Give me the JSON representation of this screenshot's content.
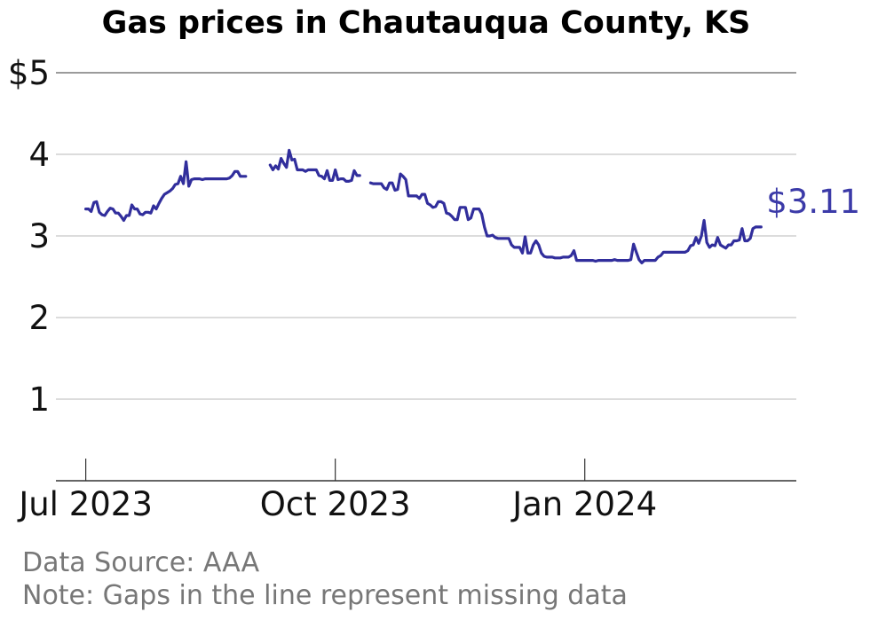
{
  "chart_data": {
    "type": "line",
    "title": "Gas prices in Chautauqua County, KS",
    "ylim": [
      0,
      5
    ],
    "yticks": [
      {
        "value": 1,
        "label": "1"
      },
      {
        "value": 2,
        "label": "2"
      },
      {
        "value": 3,
        "label": "3"
      },
      {
        "value": 4,
        "label": "4"
      },
      {
        "value": 5,
        "label": "$5"
      }
    ],
    "xlim": [
      "2023-06-20",
      "2024-03-19"
    ],
    "xticks": [
      {
        "date": "2023-07-01",
        "label": "Jul 2023"
      },
      {
        "date": "2023-10-01",
        "label": "Oct 2023"
      },
      {
        "date": "2024-01-01",
        "label": "Jan 2024"
      }
    ],
    "grid": true,
    "color": "#312e9c",
    "end_label": "$3.11",
    "segments": [
      [
        [
          "2023-07-01",
          3.33
        ],
        [
          "2023-07-02",
          3.33
        ],
        [
          "2023-07-03",
          3.3
        ],
        [
          "2023-07-04",
          3.41
        ],
        [
          "2023-07-05",
          3.42
        ],
        [
          "2023-07-06",
          3.29
        ],
        [
          "2023-07-07",
          3.26
        ],
        [
          "2023-07-08",
          3.25
        ],
        [
          "2023-07-09",
          3.3
        ],
        [
          "2023-07-10",
          3.34
        ],
        [
          "2023-07-11",
          3.33
        ],
        [
          "2023-07-12",
          3.28
        ],
        [
          "2023-07-13",
          3.28
        ],
        [
          "2023-07-14",
          3.24
        ],
        [
          "2023-07-15",
          3.19
        ],
        [
          "2023-07-16",
          3.25
        ],
        [
          "2023-07-17",
          3.25
        ],
        [
          "2023-07-18",
          3.38
        ],
        [
          "2023-07-19",
          3.33
        ],
        [
          "2023-07-20",
          3.33
        ],
        [
          "2023-07-21",
          3.27
        ],
        [
          "2023-07-22",
          3.26
        ],
        [
          "2023-07-23",
          3.29
        ],
        [
          "2023-07-24",
          3.29
        ],
        [
          "2023-07-25",
          3.28
        ],
        [
          "2023-07-26",
          3.37
        ],
        [
          "2023-07-27",
          3.33
        ],
        [
          "2023-07-28",
          3.4
        ],
        [
          "2023-07-29",
          3.46
        ],
        [
          "2023-07-30",
          3.51
        ],
        [
          "2023-07-31",
          3.53
        ],
        [
          "2023-08-01",
          3.55
        ],
        [
          "2023-08-02",
          3.58
        ],
        [
          "2023-08-03",
          3.63
        ],
        [
          "2023-08-04",
          3.64
        ],
        [
          "2023-08-05",
          3.73
        ],
        [
          "2023-08-06",
          3.64
        ],
        [
          "2023-08-07",
          3.91
        ],
        [
          "2023-08-08",
          3.61
        ],
        [
          "2023-08-09",
          3.69
        ],
        [
          "2023-08-10",
          3.7
        ],
        [
          "2023-08-11",
          3.7
        ],
        [
          "2023-08-12",
          3.7
        ],
        [
          "2023-08-13",
          3.69
        ],
        [
          "2023-08-14",
          3.7
        ],
        [
          "2023-08-15",
          3.7
        ],
        [
          "2023-08-16",
          3.7
        ],
        [
          "2023-08-17",
          3.7
        ],
        [
          "2023-08-18",
          3.7
        ],
        [
          "2023-08-19",
          3.7
        ],
        [
          "2023-08-20",
          3.7
        ],
        [
          "2023-08-21",
          3.7
        ],
        [
          "2023-08-22",
          3.7
        ],
        [
          "2023-08-23",
          3.71
        ],
        [
          "2023-08-24",
          3.74
        ],
        [
          "2023-08-25",
          3.79
        ],
        [
          "2023-08-26",
          3.79
        ],
        [
          "2023-08-27",
          3.73
        ],
        [
          "2023-08-28",
          3.73
        ],
        [
          "2023-08-29",
          3.73
        ]
      ],
      [
        [
          "2023-09-07",
          3.87
        ],
        [
          "2023-09-08",
          3.81
        ],
        [
          "2023-09-09",
          3.86
        ],
        [
          "2023-09-10",
          3.82
        ],
        [
          "2023-09-11",
          3.95
        ],
        [
          "2023-09-12",
          3.89
        ],
        [
          "2023-09-13",
          3.84
        ],
        [
          "2023-09-14",
          4.05
        ],
        [
          "2023-09-15",
          3.93
        ],
        [
          "2023-09-16",
          3.94
        ],
        [
          "2023-09-17",
          3.81
        ],
        [
          "2023-09-18",
          3.81
        ],
        [
          "2023-09-19",
          3.81
        ],
        [
          "2023-09-20",
          3.79
        ],
        [
          "2023-09-21",
          3.81
        ],
        [
          "2023-09-22",
          3.81
        ],
        [
          "2023-09-23",
          3.81
        ],
        [
          "2023-09-24",
          3.81
        ],
        [
          "2023-09-25",
          3.74
        ],
        [
          "2023-09-26",
          3.73
        ],
        [
          "2023-09-27",
          3.7
        ],
        [
          "2023-09-28",
          3.8
        ],
        [
          "2023-09-29",
          3.68
        ],
        [
          "2023-09-30",
          3.68
        ],
        [
          "2023-10-01",
          3.81
        ],
        [
          "2023-10-02",
          3.69
        ],
        [
          "2023-10-03",
          3.7
        ],
        [
          "2023-10-04",
          3.7
        ],
        [
          "2023-10-05",
          3.67
        ],
        [
          "2023-10-06",
          3.67
        ],
        [
          "2023-10-07",
          3.68
        ],
        [
          "2023-10-08",
          3.8
        ],
        [
          "2023-10-09",
          3.74
        ],
        [
          "2023-10-10",
          3.74
        ]
      ],
      [
        [
          "2023-10-14",
          3.65
        ],
        [
          "2023-10-15",
          3.64
        ],
        [
          "2023-10-16",
          3.64
        ],
        [
          "2023-10-17",
          3.64
        ],
        [
          "2023-10-18",
          3.64
        ],
        [
          "2023-10-19",
          3.59
        ],
        [
          "2023-10-20",
          3.57
        ],
        [
          "2023-10-21",
          3.65
        ],
        [
          "2023-10-22",
          3.65
        ],
        [
          "2023-10-23",
          3.56
        ],
        [
          "2023-10-24",
          3.57
        ],
        [
          "2023-10-25",
          3.76
        ],
        [
          "2023-10-26",
          3.73
        ],
        [
          "2023-10-27",
          3.69
        ],
        [
          "2023-10-28",
          3.49
        ],
        [
          "2023-10-29",
          3.49
        ],
        [
          "2023-10-30",
          3.49
        ],
        [
          "2023-10-31",
          3.49
        ],
        [
          "2023-11-01",
          3.46
        ],
        [
          "2023-11-02",
          3.51
        ],
        [
          "2023-11-03",
          3.51
        ],
        [
          "2023-11-04",
          3.4
        ],
        [
          "2023-11-05",
          3.38
        ],
        [
          "2023-11-06",
          3.35
        ],
        [
          "2023-11-07",
          3.36
        ],
        [
          "2023-11-08",
          3.42
        ],
        [
          "2023-11-09",
          3.42
        ],
        [
          "2023-11-10",
          3.4
        ],
        [
          "2023-11-11",
          3.28
        ],
        [
          "2023-11-12",
          3.27
        ],
        [
          "2023-11-13",
          3.24
        ],
        [
          "2023-11-14",
          3.2
        ],
        [
          "2023-11-15",
          3.2
        ],
        [
          "2023-11-16",
          3.35
        ],
        [
          "2023-11-17",
          3.35
        ],
        [
          "2023-11-18",
          3.35
        ],
        [
          "2023-11-19",
          3.2
        ],
        [
          "2023-11-20",
          3.22
        ],
        [
          "2023-11-21",
          3.33
        ],
        [
          "2023-11-22",
          3.33
        ],
        [
          "2023-11-23",
          3.33
        ],
        [
          "2023-11-24",
          3.27
        ],
        [
          "2023-11-25",
          3.11
        ],
        [
          "2023-11-26",
          3.0
        ],
        [
          "2023-11-27",
          3.0
        ],
        [
          "2023-11-28",
          3.01
        ],
        [
          "2023-11-29",
          2.98
        ],
        [
          "2023-11-30",
          2.97
        ],
        [
          "2023-12-01",
          2.97
        ],
        [
          "2023-12-02",
          2.97
        ],
        [
          "2023-12-03",
          2.97
        ],
        [
          "2023-12-04",
          2.97
        ],
        [
          "2023-12-05",
          2.89
        ],
        [
          "2023-12-06",
          2.86
        ],
        [
          "2023-12-07",
          2.86
        ],
        [
          "2023-12-08",
          2.86
        ],
        [
          "2023-12-09",
          2.79
        ],
        [
          "2023-12-10",
          2.99
        ],
        [
          "2023-12-11",
          2.79
        ],
        [
          "2023-12-12",
          2.79
        ],
        [
          "2023-12-13",
          2.89
        ],
        [
          "2023-12-14",
          2.94
        ],
        [
          "2023-12-15",
          2.89
        ],
        [
          "2023-12-16",
          2.79
        ],
        [
          "2023-12-17",
          2.75
        ],
        [
          "2023-12-18",
          2.74
        ],
        [
          "2023-12-19",
          2.74
        ],
        [
          "2023-12-20",
          2.74
        ],
        [
          "2023-12-21",
          2.73
        ],
        [
          "2023-12-22",
          2.73
        ],
        [
          "2023-12-23",
          2.73
        ],
        [
          "2023-12-24",
          2.74
        ],
        [
          "2023-12-25",
          2.74
        ],
        [
          "2023-12-26",
          2.74
        ],
        [
          "2023-12-27",
          2.76
        ],
        [
          "2023-12-28",
          2.82
        ],
        [
          "2023-12-29",
          2.7
        ],
        [
          "2023-12-30",
          2.7
        ],
        [
          "2023-12-31",
          2.7
        ],
        [
          "2024-01-01",
          2.7
        ],
        [
          "2024-01-02",
          2.7
        ],
        [
          "2024-01-03",
          2.7
        ],
        [
          "2024-01-04",
          2.7
        ],
        [
          "2024-01-05",
          2.69
        ],
        [
          "2024-01-06",
          2.7
        ],
        [
          "2024-01-07",
          2.7
        ],
        [
          "2024-01-08",
          2.7
        ],
        [
          "2024-01-09",
          2.7
        ],
        [
          "2024-01-10",
          2.7
        ],
        [
          "2024-01-11",
          2.7
        ],
        [
          "2024-01-12",
          2.71
        ],
        [
          "2024-01-13",
          2.7
        ],
        [
          "2024-01-14",
          2.7
        ],
        [
          "2024-01-15",
          2.7
        ],
        [
          "2024-01-16",
          2.7
        ],
        [
          "2024-01-17",
          2.7
        ],
        [
          "2024-01-18",
          2.71
        ],
        [
          "2024-01-19",
          2.9
        ],
        [
          "2024-01-20",
          2.8
        ],
        [
          "2024-01-21",
          2.71
        ],
        [
          "2024-01-22",
          2.67
        ],
        [
          "2024-01-23",
          2.7
        ],
        [
          "2024-01-24",
          2.7
        ],
        [
          "2024-01-25",
          2.7
        ],
        [
          "2024-01-26",
          2.7
        ],
        [
          "2024-01-27",
          2.7
        ],
        [
          "2024-01-28",
          2.74
        ],
        [
          "2024-01-29",
          2.76
        ],
        [
          "2024-01-30",
          2.8
        ],
        [
          "2024-01-31",
          2.8
        ],
        [
          "2024-02-01",
          2.8
        ],
        [
          "2024-02-02",
          2.8
        ],
        [
          "2024-02-03",
          2.8
        ],
        [
          "2024-02-04",
          2.8
        ],
        [
          "2024-02-05",
          2.8
        ],
        [
          "2024-02-06",
          2.8
        ],
        [
          "2024-02-07",
          2.8
        ],
        [
          "2024-02-08",
          2.82
        ],
        [
          "2024-02-09",
          2.88
        ],
        [
          "2024-02-10",
          2.89
        ],
        [
          "2024-02-11",
          2.98
        ],
        [
          "2024-02-12",
          2.91
        ],
        [
          "2024-02-13",
          3.0
        ],
        [
          "2024-02-14",
          3.19
        ],
        [
          "2024-02-15",
          2.92
        ],
        [
          "2024-02-16",
          2.86
        ],
        [
          "2024-02-17",
          2.89
        ],
        [
          "2024-02-18",
          2.88
        ],
        [
          "2024-02-19",
          2.98
        ],
        [
          "2024-02-20",
          2.89
        ],
        [
          "2024-02-21",
          2.87
        ],
        [
          "2024-02-22",
          2.85
        ],
        [
          "2024-02-23",
          2.89
        ],
        [
          "2024-02-24",
          2.89
        ],
        [
          "2024-02-25",
          2.94
        ],
        [
          "2024-02-26",
          2.94
        ],
        [
          "2024-02-27",
          2.95
        ],
        [
          "2024-02-28",
          3.09
        ],
        [
          "2024-02-29",
          2.94
        ],
        [
          "2024-03-01",
          2.94
        ],
        [
          "2024-03-02",
          2.97
        ],
        [
          "2024-03-03",
          3.09
        ],
        [
          "2024-03-04",
          3.11
        ],
        [
          "2024-03-05",
          3.11
        ],
        [
          "2024-03-06",
          3.11
        ]
      ]
    ]
  },
  "footer": {
    "source": "Data Source: AAA",
    "note": "Note: Gaps in the line represent missing data"
  }
}
